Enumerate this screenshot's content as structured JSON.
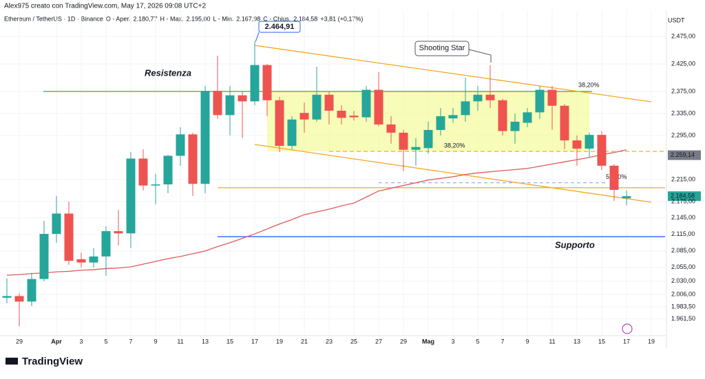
{
  "header": {
    "author_line": "Alex975 creato con TradingView.com, May 17, 2026 09:08 UTC+2",
    "symbol": "Ethereum / TetherUS · 1D · Binance",
    "ohlc": [
      {
        "key": "O - Aper.",
        "text": "2.180,77"
      },
      {
        "key": "H - Max.",
        "text": "2.195,00"
      },
      {
        "key": "L - Min.",
        "text": "2.167,98"
      },
      {
        "key": "C - Chius.",
        "text": "2.184,58"
      }
    ],
    "change": "+3,81 (+0,17%)",
    "logo": "TradingView"
  },
  "chart_data": {
    "type": "candlestick",
    "unit": "USDT",
    "categories": [
      null,
      "29",
      null,
      null,
      "Apr",
      null,
      "3",
      null,
      "5",
      null,
      "7",
      null,
      "9",
      null,
      "11",
      null,
      "13",
      null,
      "15",
      null,
      "17",
      null,
      "19",
      null,
      "21",
      null,
      "23",
      null,
      "25",
      null,
      "27",
      null,
      "29",
      null,
      "Mag",
      null,
      "3",
      null,
      "5",
      null,
      "7",
      null,
      "9",
      null,
      "11",
      null,
      "13",
      null,
      "15",
      null,
      "17",
      null,
      "19"
    ],
    "open": [
      2000,
      2003,
      1993,
      2034,
      2116,
      2153,
      2070,
      2064,
      2075,
      2121,
      2117,
      2253,
      2204,
      2206,
      2258,
      2297,
      2207,
      2376,
      2332,
      2368,
      2357,
      2423,
      2359,
      2276,
      2336,
      2324,
      2369,
      2340,
      2331,
      2328,
      2378,
      2315,
      2300,
      2269,
      2272,
      2305,
      2326,
      2332,
      2357,
      2369,
      2359,
      2303,
      2318,
      2337,
      2378,
      2349,
      2286,
      2271,
      2296,
      2240,
      2180.77,
      null,
      null
    ],
    "high": [
      2035,
      2008,
      2045,
      2140,
      2185,
      2175,
      2082,
      2090,
      2130,
      2160,
      2265,
      2270,
      2225,
      2260,
      2310,
      2300,
      2385,
      2440,
      2385,
      2375,
      2464.91,
      2425,
      2365,
      2330,
      2355,
      2420,
      2375,
      2350,
      2340,
      2385,
      2410,
      2330,
      2305,
      2290,
      2320,
      2345,
      2345,
      2400,
      2385,
      2423,
      2362,
      2335,
      2345,
      2385,
      2385,
      2352,
      2295,
      2300,
      2303,
      2243,
      2195,
      null,
      null
    ],
    "low": [
      1990,
      1948,
      1985,
      2030,
      2100,
      2060,
      2055,
      2055,
      2040,
      2095,
      2090,
      2195,
      2170,
      2190,
      2240,
      2185,
      2190,
      2325,
      2295,
      2290,
      2350,
      2330,
      2265,
      2270,
      2300,
      2320,
      2315,
      2315,
      2322,
      2320,
      2312,
      2280,
      2230,
      2240,
      2262,
      2295,
      2318,
      2320,
      2340,
      2345,
      2295,
      2280,
      2310,
      2325,
      2305,
      2270,
      2240,
      2255,
      2232,
      2176,
      2167.98,
      null,
      null
    ],
    "close": [
      2003,
      1993,
      2034,
      2116,
      2153,
      2067,
      2064,
      2075,
      2121,
      2117,
      2253,
      2204,
      2206,
      2258,
      2297,
      2207,
      2376,
      2332,
      2368,
      2357,
      2423,
      2359,
      2276,
      2324,
      2324,
      2369,
      2340,
      2327,
      2328,
      2378,
      2315,
      2300,
      2269,
      2274,
      2305,
      2330,
      2332,
      2357,
      2369,
      2359,
      2303,
      2320,
      2337,
      2378,
      2349,
      2286,
      2271,
      2296,
      2240,
      2196,
      2184.58,
      null,
      null
    ],
    "ma": [
      2041,
      2042,
      2044,
      2045,
      2047,
      2048,
      2050,
      2051,
      2053,
      2054,
      2056,
      2061,
      2066,
      2071,
      2075,
      2080,
      2085,
      2093,
      2100,
      2108,
      2116,
      2125,
      2134,
      2142,
      2151,
      2156,
      2161,
      2167,
      2172,
      2183,
      2194,
      2199,
      2204,
      2209,
      2214,
      2217,
      2220,
      2224,
      2227,
      2229,
      2231,
      2233,
      2235,
      2239,
      2243,
      2247,
      2251,
      2255,
      2260,
      2264,
      2269,
      null,
      null
    ],
    "up_color": "#26a69a",
    "down_color": "#ef5350",
    "ma_color": "#e05a5a",
    "ylim": [
      1931,
      2522.5
    ],
    "yticks": [
      {
        "value": 2475,
        "label": "2.475,00"
      },
      {
        "value": 2425,
        "label": "2.425,00"
      },
      {
        "value": 2375,
        "label": "2.375,00"
      },
      {
        "value": 2335,
        "label": "2.335,00"
      },
      {
        "value": 2295,
        "label": "2.295,00"
      },
      {
        "value": 2215,
        "label": "2.215,00"
      },
      {
        "value": 2175,
        "label": "2.175,00"
      },
      {
        "value": 2145,
        "label": "2.145,00"
      },
      {
        "value": 2115,
        "label": "2.115,00"
      },
      {
        "value": 2085,
        "label": "2.085,00"
      },
      {
        "value": 2055,
        "label": "2.055,00"
      },
      {
        "value": 2030,
        "label": "2.030,00"
      },
      {
        "value": 2006,
        "label": "2.006,00"
      },
      {
        "value": 1983.5,
        "label": "1.983,50"
      },
      {
        "value": 1961.5,
        "label": "1.961,50"
      }
    ],
    "grid": true,
    "price_tags": [
      {
        "value": 2259.14,
        "label": "2.259,14",
        "color": "#787b86"
      },
      {
        "value": 2184.58,
        "label": "2.184,58",
        "color": "#26a69a"
      }
    ],
    "resistance": {
      "label": "Resistenza",
      "value": 2375,
      "color": "#4caf50"
    },
    "support": {
      "label": "Supporto",
      "value": 2111,
      "color": "#2962ff"
    },
    "orange_level": 2200,
    "fib_levels": [
      {
        "label": "38,20%",
        "value": 2376
      },
      {
        "label": "38,20%",
        "value": 2266
      },
      {
        "label": "50,00%",
        "value": 2209
      }
    ],
    "high_callout": {
      "label": "2.464,91",
      "value": 2464.91
    },
    "pattern_callout": "Shooting Star"
  }
}
